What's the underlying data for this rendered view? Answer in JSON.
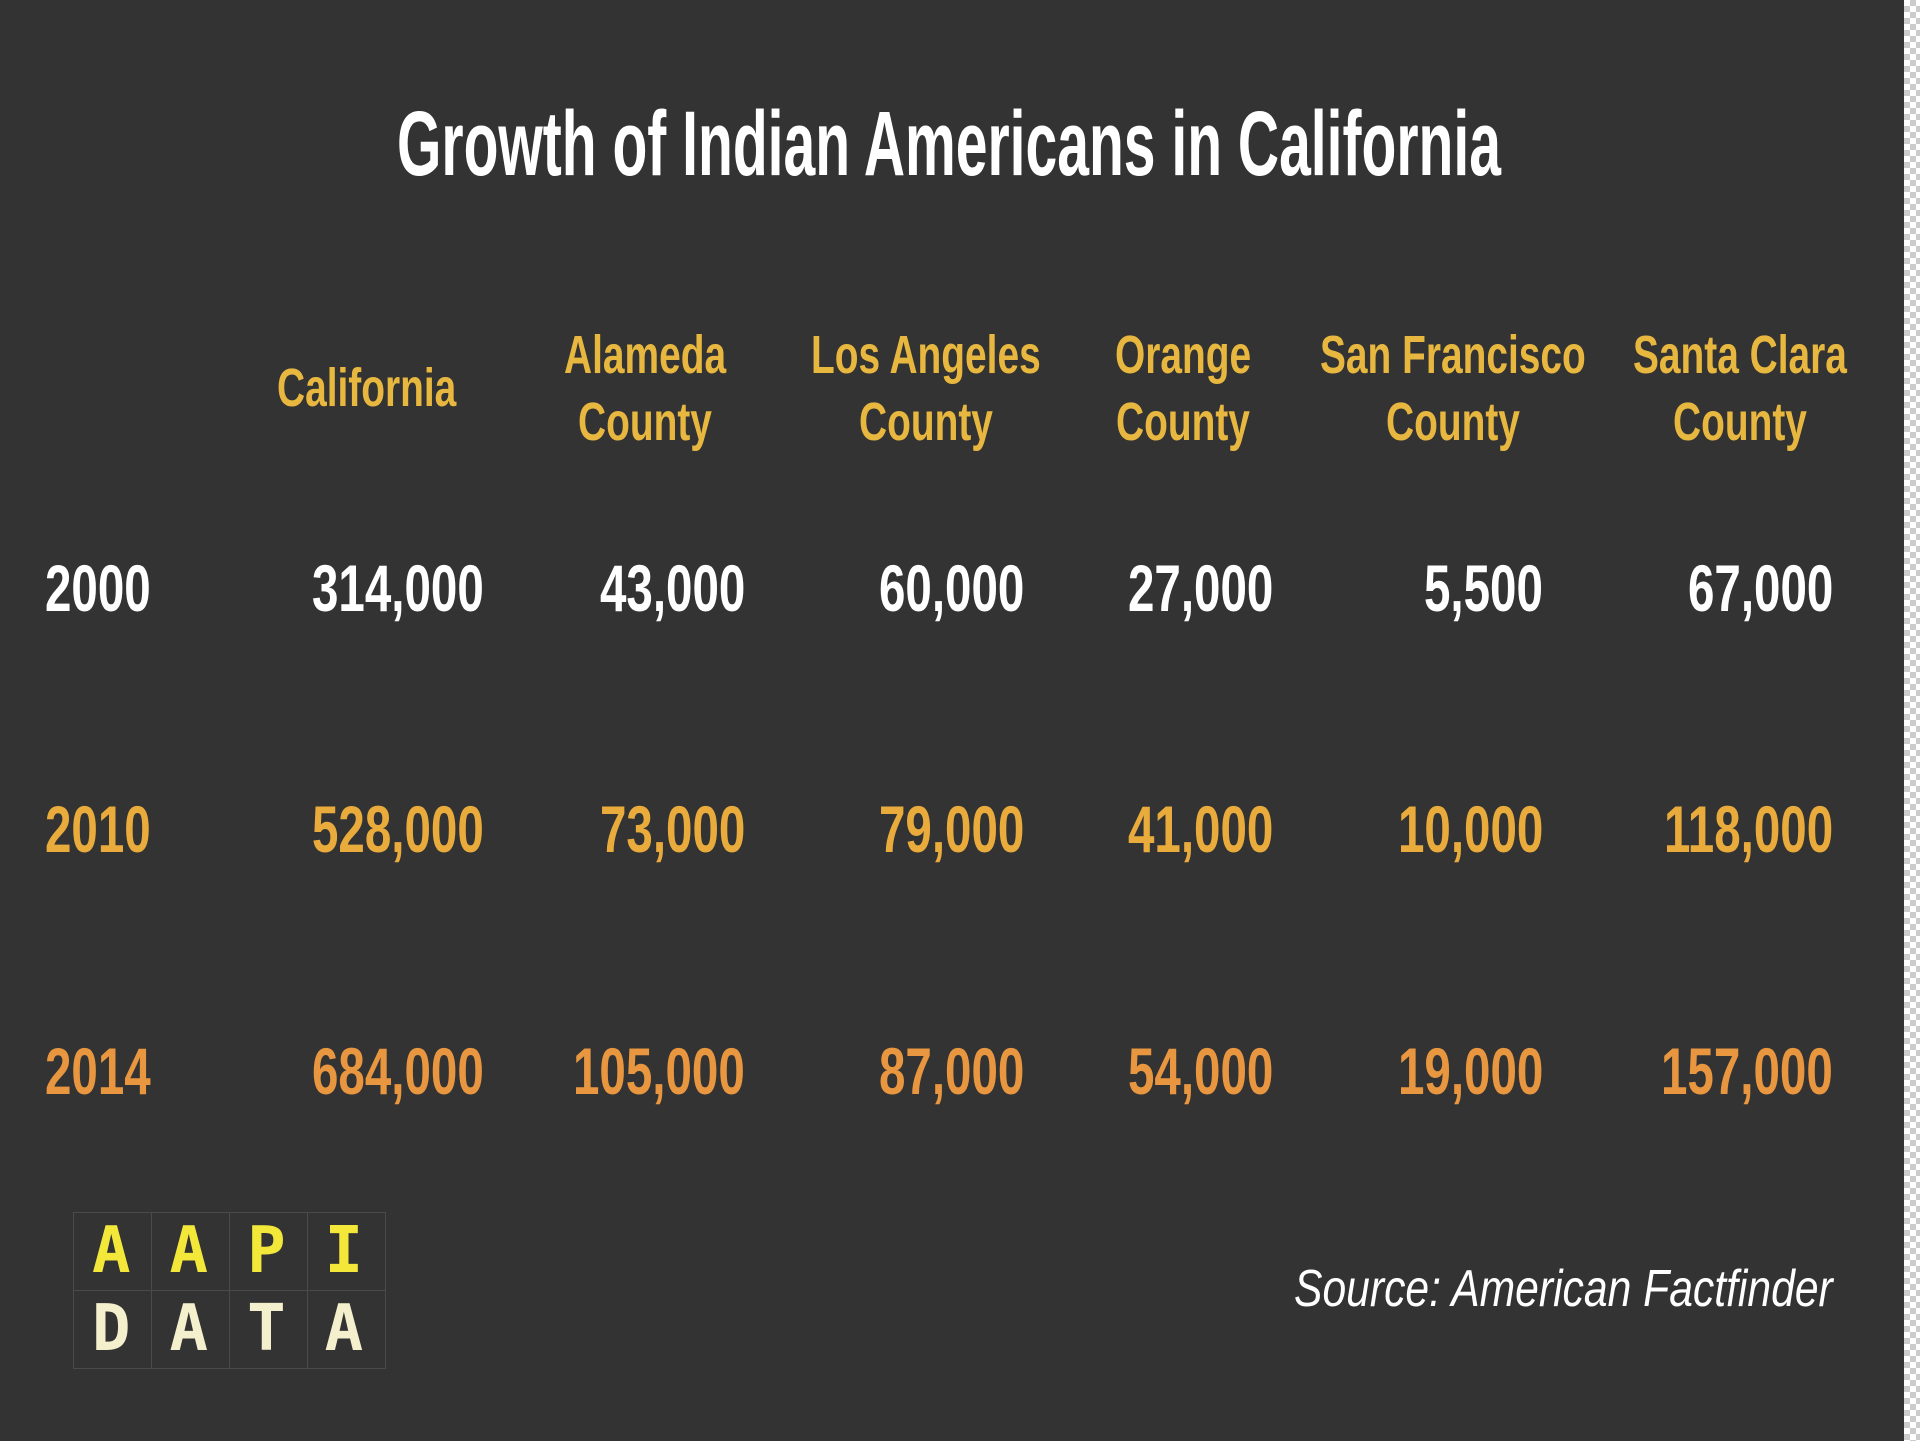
{
  "title": "Growth of Indian Americans in California",
  "table": {
    "header": [
      [
        "California"
      ],
      [
        "Alameda",
        "County"
      ],
      [
        "Los Angeles",
        "County"
      ],
      [
        "Orange",
        "County"
      ],
      [
        "San Francisco",
        "County"
      ],
      [
        "Santa Clara",
        "County"
      ]
    ],
    "rows": [
      {
        "year": "2000",
        "values": [
          "314,000",
          "43,000",
          "60,000",
          "27,000",
          "5,500",
          "67,000"
        ]
      },
      {
        "year": "2010",
        "values": [
          "528,000",
          "73,000",
          "79,000",
          "41,000",
          "10,000",
          "118,000"
        ]
      },
      {
        "year": "2014",
        "values": [
          "684,000",
          "105,000",
          "87,000",
          "54,000",
          "19,000",
          "157,000"
        ]
      }
    ]
  },
  "logo": {
    "lines": [
      "AAPI",
      "DATA"
    ]
  },
  "source": "Source: American Factfinder"
}
